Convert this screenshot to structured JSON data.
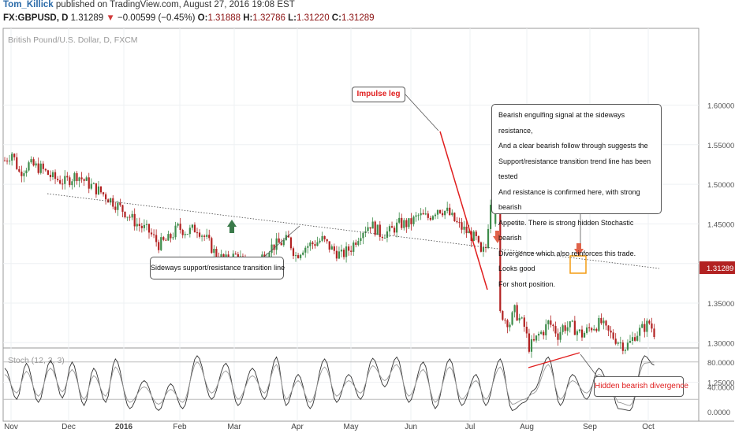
{
  "header": {
    "author": "Tom_Killick",
    "published_text": " published on TradingView.com, August 27, 2016 19:08 EST",
    "symbol": "FX:GBPUSD, D",
    "price": "1.31289",
    "change": "−0.00599 (−0.45%)",
    "open_label": "O:",
    "open": "1.31888",
    "high_label": "H:",
    "high": "1.32786",
    "low_label": "L:",
    "low": "1.31220",
    "close_label": "C:",
    "close": "1.31289",
    "down_arrow": "▼"
  },
  "colors": {
    "up_candle": "#3d8c4a",
    "down_candle": "#b22222",
    "annotation_red": "#e01e1e",
    "arrow_green": "#3a7a4a",
    "arrow_red": "#e0634a",
    "price_badge": "#b22222",
    "highlight_box": "#f39c12"
  },
  "annotations": {
    "impulse": "Impulse leg",
    "sideways": "Sideways support/resistance transition line",
    "hidden_div": "Hidden bearish divergence",
    "note_lines": [
      "Bearish engulfing signal at the sideways resistance,",
      "And a clear bearish follow through suggests the",
      "Support/resistance transition trend line has been tested",
      "And resistance is confirmed here, with strong bearish",
      "Appetite. There is strong hidden Stochastic bearish",
      "Divergence which also reinforces this trade. Looks good",
      "For short position."
    ]
  },
  "chart_data": [
    {
      "type": "candlestick",
      "title": "British Pound/U.S. Dollar, D, FXCM",
      "x_tick_labels": [
        "Nov",
        "Dec",
        "2016",
        "Feb",
        "Mar",
        "Apr",
        "May",
        "Jun",
        "Jul",
        "Aug",
        "Sep",
        "Oct"
      ],
      "y_tick_labels": [
        "1.60000",
        "1.55000",
        "1.50000",
        "1.45000",
        "1.40000",
        "1.35000",
        "1.30000",
        "1.25000"
      ],
      "ylim": [
        1.2,
        1.64
      ],
      "last_price": "1.31289",
      "ohlc_path": [
        [
          0,
          1.53
        ],
        [
          3,
          1.54
        ],
        [
          6,
          1.515
        ],
        [
          10,
          1.525
        ],
        [
          15,
          1.52
        ],
        [
          20,
          1.508
        ],
        [
          25,
          1.503
        ],
        [
          30,
          1.512
        ],
        [
          35,
          1.5
        ],
        [
          40,
          1.49
        ],
        [
          45,
          1.478
        ],
        [
          50,
          1.465
        ],
        [
          55,
          1.45
        ],
        [
          60,
          1.44
        ],
        [
          64,
          1.424
        ],
        [
          68,
          1.43
        ],
        [
          72,
          1.445
        ],
        [
          76,
          1.44
        ],
        [
          80,
          1.445
        ],
        [
          84,
          1.43
        ],
        [
          88,
          1.41
        ],
        [
          92,
          1.404
        ],
        [
          96,
          1.41
        ],
        [
          100,
          1.4
        ],
        [
          103,
          1.388
        ],
        [
          106,
          1.405
        ],
        [
          110,
          1.42
        ],
        [
          114,
          1.425
        ],
        [
          118,
          1.43
        ],
        [
          121,
          1.41
        ],
        [
          124,
          1.42
        ],
        [
          128,
          1.425
        ],
        [
          132,
          1.43
        ],
        [
          136,
          1.418
        ],
        [
          140,
          1.41
        ],
        [
          144,
          1.42
        ],
        [
          148,
          1.44
        ],
        [
          152,
          1.45
        ],
        [
          156,
          1.438
        ],
        [
          160,
          1.44
        ],
        [
          164,
          1.45
        ],
        [
          168,
          1.45
        ],
        [
          172,
          1.46
        ],
        [
          176,
          1.458
        ],
        [
          180,
          1.47
        ],
        [
          184,
          1.465
        ],
        [
          188,
          1.45
        ],
        [
          192,
          1.44
        ],
        [
          196,
          1.43
        ],
        [
          198,
          1.41
        ],
        [
          200,
          1.42
        ],
        [
          202,
          1.48
        ],
        [
          204,
          1.49
        ],
        [
          205,
          1.48
        ],
        [
          206,
          1.34
        ],
        [
          208,
          1.33
        ],
        [
          210,
          1.325
        ],
        [
          212,
          1.34
        ],
        [
          214,
          1.33
        ],
        [
          216,
          1.32
        ],
        [
          218,
          1.295
        ],
        [
          220,
          1.3
        ],
        [
          222,
          1.31
        ],
        [
          224,
          1.315
        ],
        [
          226,
          1.325
        ],
        [
          228,
          1.32
        ],
        [
          230,
          1.31
        ],
        [
          232,
          1.32
        ],
        [
          236,
          1.32
        ],
        [
          240,
          1.31
        ],
        [
          244,
          1.32
        ],
        [
          248,
          1.325
        ],
        [
          250,
          1.315
        ],
        [
          252,
          1.31
        ],
        [
          254,
          1.305
        ],
        [
          256,
          1.3
        ],
        [
          258,
          1.295
        ],
        [
          260,
          1.3
        ],
        [
          262,
          1.31
        ],
        [
          264,
          1.315
        ],
        [
          266,
          1.32
        ],
        [
          268,
          1.325
        ],
        [
          270,
          1.313
        ]
      ]
    },
    {
      "type": "line",
      "title": "Stoch (12, 3, 3)",
      "y_tick_labels": [
        "80.0000",
        "40.0000",
        "0.0000"
      ],
      "ylim": [
        -5,
        100
      ],
      "reference_lines": [
        80,
        20
      ],
      "series": [
        {
          "peaks": [
            [
              0,
              70
            ],
            [
              5,
              20
            ],
            [
              9,
              78
            ],
            [
              14,
              15
            ],
            [
              19,
              82
            ],
            [
              24,
              22
            ],
            [
              28,
              80
            ],
            [
              33,
              10
            ],
            [
              37,
              70
            ],
            [
              42,
              15
            ],
            [
              46,
              85
            ],
            [
              52,
              5
            ],
            [
              58,
              50
            ],
            [
              64,
              2
            ],
            [
              69,
              45
            ],
            [
              74,
              5
            ],
            [
              80,
              90
            ],
            [
              86,
              20
            ],
            [
              92,
              78
            ],
            [
              97,
              10
            ],
            [
              103,
              70
            ],
            [
              108,
              20
            ],
            [
              113,
              88
            ],
            [
              117,
              10
            ],
            [
              122,
              60
            ],
            [
              127,
              5
            ],
            [
              133,
              85
            ],
            [
              138,
              15
            ],
            [
              143,
              60
            ],
            [
              148,
              20
            ],
            [
              153,
              86
            ],
            [
              158,
              40
            ],
            [
              163,
              88
            ],
            [
              168,
              15
            ],
            [
              174,
              80
            ],
            [
              179,
              5
            ],
            [
              185,
              85
            ],
            [
              190,
              10
            ],
            [
              196,
              60
            ],
            [
              200,
              10
            ],
            [
              206,
              85
            ],
            [
              211,
              2
            ],
            [
              216,
              15
            ],
            [
              220,
              35
            ],
            [
              226,
              88
            ],
            [
              231,
              10
            ],
            [
              236,
              60
            ],
            [
              242,
              20
            ],
            [
              247,
              70
            ],
            [
              252,
              40
            ],
            [
              255,
              5
            ],
            [
              260,
              2
            ],
            [
              266,
              90
            ],
            [
              270,
              75
            ]
          ]
        },
        {
          "peaks": [
            [
              0,
              60
            ],
            [
              5,
              30
            ],
            [
              9,
              65
            ],
            [
              14,
              25
            ],
            [
              19,
              70
            ],
            [
              24,
              32
            ],
            [
              28,
              68
            ],
            [
              33,
              20
            ],
            [
              37,
              58
            ],
            [
              42,
              25
            ],
            [
              46,
              72
            ],
            [
              52,
              15
            ],
            [
              58,
              40
            ],
            [
              64,
              12
            ],
            [
              69,
              36
            ],
            [
              74,
              15
            ],
            [
              80,
              80
            ],
            [
              86,
              30
            ],
            [
              92,
              66
            ],
            [
              97,
              20
            ],
            [
              103,
              58
            ],
            [
              108,
              30
            ],
            [
              113,
              76
            ],
            [
              117,
              20
            ],
            [
              122,
              50
            ],
            [
              127,
              15
            ],
            [
              133,
              72
            ],
            [
              138,
              25
            ],
            [
              143,
              50
            ],
            [
              148,
              30
            ],
            [
              153,
              74
            ],
            [
              158,
              50
            ],
            [
              163,
              76
            ],
            [
              168,
              25
            ],
            [
              174,
              68
            ],
            [
              179,
              15
            ],
            [
              185,
              72
            ],
            [
              190,
              20
            ],
            [
              196,
              50
            ],
            [
              200,
              20
            ],
            [
              206,
              72
            ],
            [
              211,
              12
            ],
            [
              216,
              20
            ],
            [
              220,
              30
            ],
            [
              226,
              76
            ],
            [
              231,
              20
            ],
            [
              236,
              50
            ],
            [
              242,
              30
            ],
            [
              247,
              60
            ],
            [
              252,
              45
            ],
            [
              255,
              15
            ],
            [
              260,
              10
            ],
            [
              266,
              78
            ],
            [
              270,
              80
            ]
          ]
        }
      ]
    }
  ]
}
